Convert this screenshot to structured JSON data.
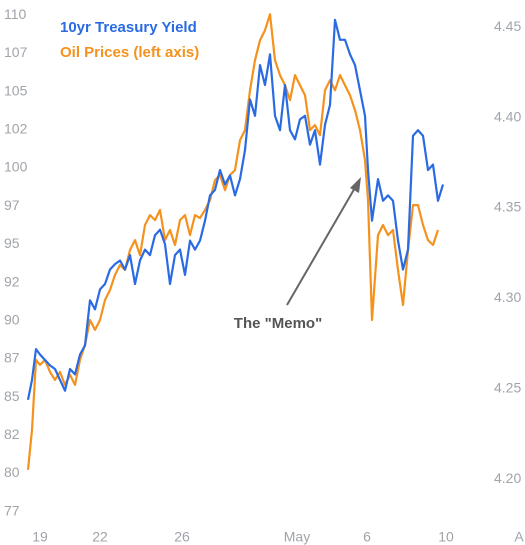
{
  "chart_data": {
    "type": "line",
    "x": [
      0,
      0.8,
      1.6,
      2.4,
      3.4,
      4.4,
      5.4,
      6.4,
      7.4,
      8.4,
      9.4,
      10.4,
      11.4,
      12.4,
      13.4,
      14.4,
      15.4,
      16.4,
      17.4,
      18.4,
      19.4,
      20.4,
      21.4,
      22.4,
      23.4,
      24.4,
      25.4,
      26.4,
      27.4,
      28.4,
      29.4,
      30.4,
      31.4,
      32.4,
      33.4,
      34.4,
      35.4,
      36.4,
      37.4,
      38.4,
      39.4,
      40.4,
      41.4,
      42.4,
      43.4,
      44.4,
      45.4,
      46.4,
      47.4,
      48.4,
      49.4,
      50.4,
      51.4,
      52.4,
      53.4,
      54.4,
      55.4,
      56.4,
      57.4,
      58.4,
      59.4,
      60.4,
      61.4,
      62.4,
      63.4,
      64.4,
      65.4,
      66.4,
      67.4,
      68,
      68.8,
      70,
      71,
      72,
      73,
      74,
      75,
      76,
      77,
      78,
      79,
      80,
      81,
      82,
      83
    ],
    "xlim": [
      0,
      99.4
    ],
    "xticks": [
      {
        "value": 2.4,
        "label": "19"
      },
      {
        "value": 14.4,
        "label": "22"
      },
      {
        "value": 30.8,
        "label": "26"
      },
      {
        "value": 53.8,
        "label": "May"
      },
      {
        "value": 67.8,
        "label": "6"
      },
      {
        "value": 83.6,
        "label": "10"
      },
      {
        "value": 98.2,
        "label": "A"
      }
    ],
    "ylim": [
      76.3,
      111
    ],
    "yticks": [
      {
        "value": 77.5,
        "label": "77"
      },
      80,
      {
        "value": 82.5,
        "label": "82"
      },
      85,
      {
        "value": 87.5,
        "label": "87"
      },
      90,
      {
        "value": 92.5,
        "label": "92"
      },
      95,
      {
        "value": 97.5,
        "label": "97"
      },
      100,
      {
        "value": 102.5,
        "label": "102"
      },
      105,
      {
        "value": 107.5,
        "label": "107"
      },
      110
    ],
    "y2lim": [
      4.172,
      4.465
    ],
    "y2ticks": [
      {
        "value": 4.2,
        "label": "4.20"
      },
      4.25,
      {
        "value": 4.3,
        "label": "4.30"
      },
      4.35,
      {
        "value": 4.4,
        "label": "4.40"
      },
      4.45
    ],
    "legend": "upper left",
    "series": [
      {
        "name": "10yr Treasury Yield",
        "color": "#2a6be3",
        "axis": "y2",
        "values": [
          4.244,
          4.255,
          4.272,
          4.269,
          4.266,
          4.263,
          4.261,
          4.255,
          4.249,
          4.261,
          4.258,
          4.269,
          4.274,
          4.299,
          4.294,
          4.305,
          4.308,
          4.316,
          4.319,
          4.321,
          4.316,
          4.324,
          4.308,
          4.321,
          4.327,
          4.324,
          4.335,
          4.338,
          4.33,
          4.308,
          4.324,
          4.327,
          4.313,
          4.332,
          4.327,
          4.332,
          4.343,
          4.357,
          4.36,
          4.371,
          4.363,
          4.368,
          4.357,
          4.366,
          4.382,
          4.41,
          4.401,
          4.429,
          4.418,
          4.435,
          4.401,
          4.393,
          4.418,
          4.393,
          4.388,
          4.399,
          4.401,
          4.385,
          4.393,
          4.374,
          4.396,
          4.407,
          4.454,
          4.443,
          4.443,
          4.435,
          4.429,
          4.415,
          4.401,
          4.371,
          4.343,
          4.366,
          4.354,
          4.357,
          4.354,
          4.332,
          4.316,
          4.327,
          4.39,
          4.393,
          4.39,
          4.371,
          4.374,
          4.354,
          4.363
        ]
      },
      {
        "name": "Oil Prices (left axis)",
        "color": "#f5921e",
        "values": [
          80.24,
          82.86,
          87.44,
          87.11,
          87.44,
          86.65,
          86.13,
          86.65,
          85.8,
          86.46,
          85.8,
          87.44,
          88.42,
          90.05,
          89.4,
          90.05,
          91.36,
          92.01,
          93.0,
          93.65,
          93.32,
          94.63,
          95.28,
          94.3,
          96.27,
          96.92,
          96.59,
          97.25,
          95.28,
          95.94,
          94.96,
          96.59,
          96.92,
          95.61,
          96.92,
          96.72,
          97.25,
          97.9,
          99.21,
          99.54,
          98.55,
          99.54,
          99.86,
          101.82,
          102.48,
          105.09,
          107.06,
          108.36,
          109.02,
          110.07,
          107.06,
          106.08,
          105.42,
          104.44,
          106.08,
          105.42,
          104.77,
          102.48,
          102.81,
          102.15,
          105.09,
          105.75,
          105.09,
          106.08,
          105.42,
          104.77,
          103.79,
          102.48,
          100.52,
          97.9,
          90.05,
          95.61,
          96.27,
          95.61,
          95.94,
          93.32,
          91.03,
          94.63,
          97.57,
          97.57,
          96.27,
          95.28,
          94.96,
          95.94,
          null
        ]
      }
    ],
    "annotation": "The \"Memo\""
  }
}
